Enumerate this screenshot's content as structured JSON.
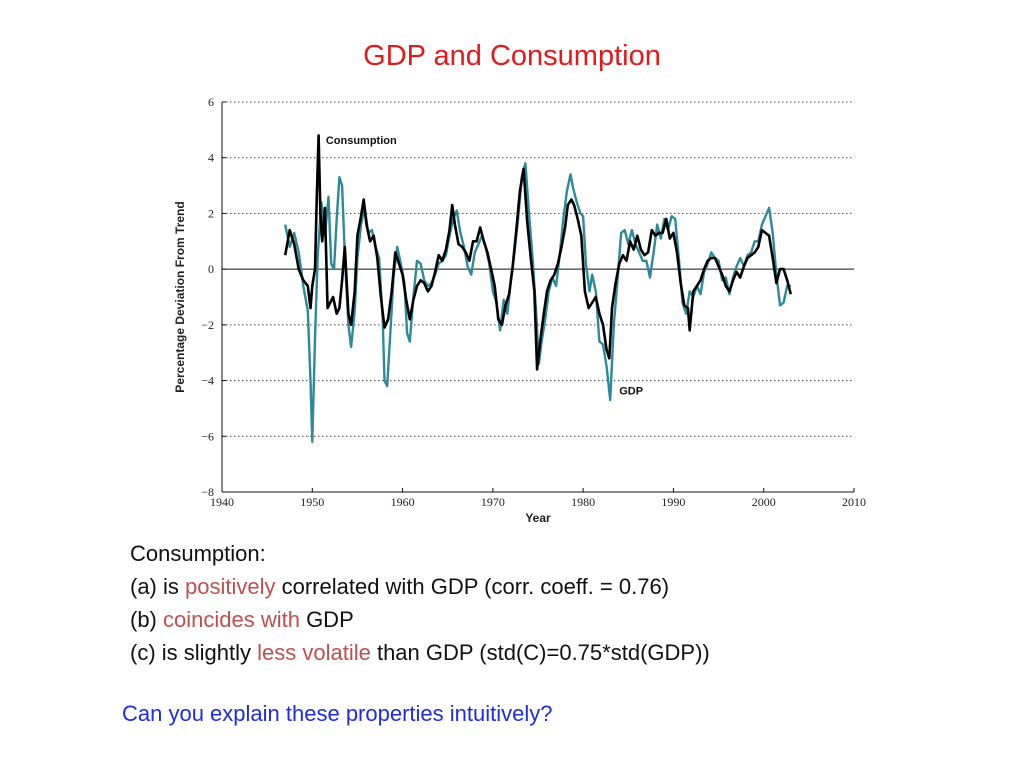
{
  "slide": {
    "title": "GDP and Consumption",
    "notes": {
      "heading": "Consumption:",
      "a_prefix": "(a) is ",
      "a_highlight": "positively",
      "a_suffix": " correlated with GDP (corr. coeff. = 0.76)",
      "b_prefix": "(b) ",
      "b_highlight": "coincides with",
      "b_suffix": " GDP",
      "c_prefix": "(c) is slightly ",
      "c_highlight": "less volatile",
      "c_suffix": " than GDP (std(C)=0.75*std(GDP))"
    },
    "question": "Can you explain these properties intuitively?",
    "colors": {
      "title": "#e31a1c",
      "highlight": "#c0504d",
      "question": "#1f2ce0",
      "gdp": "#2e8a9a",
      "consumption": "#000000"
    }
  },
  "chart_data": {
    "type": "line",
    "title": "",
    "xlabel": "Year",
    "ylabel": "Percentage Deviation From Trend",
    "xlim": [
      1940,
      2010
    ],
    "ylim": [
      -8,
      6
    ],
    "xticks": [
      1940,
      1950,
      1960,
      1970,
      1980,
      1990,
      2000,
      2010
    ],
    "yticks": [
      6,
      4,
      2,
      0,
      -2,
      -4,
      -6,
      -8
    ],
    "ytick_labels": [
      "6",
      "4",
      "2",
      "0",
      "−2",
      "−4",
      "−6",
      "−8"
    ],
    "grid": "dotted horizontal",
    "series": [
      {
        "name": "GDP",
        "points": [
          [
            1947.0,
            1.6
          ],
          [
            1947.5,
            0.8
          ],
          [
            1948.0,
            1.3
          ],
          [
            1948.5,
            0.6
          ],
          [
            1949.0,
            -0.6
          ],
          [
            1949.5,
            -1.5
          ],
          [
            1949.8,
            -4.0
          ],
          [
            1950.0,
            -6.2
          ],
          [
            1950.3,
            -2.5
          ],
          [
            1950.6,
            0.5
          ],
          [
            1951.0,
            2.4
          ],
          [
            1951.4,
            1.2
          ],
          [
            1951.8,
            2.6
          ],
          [
            1952.1,
            0.2
          ],
          [
            1952.4,
            0.0
          ],
          [
            1952.7,
            1.8
          ],
          [
            1953.0,
            3.3
          ],
          [
            1953.3,
            3.0
          ],
          [
            1953.6,
            0.5
          ],
          [
            1954.0,
            -2.0
          ],
          [
            1954.3,
            -2.8
          ],
          [
            1954.7,
            -1.5
          ],
          [
            1955.0,
            0.4
          ],
          [
            1955.4,
            1.6
          ],
          [
            1955.8,
            2.2
          ],
          [
            1956.2,
            1.3
          ],
          [
            1956.6,
            1.4
          ],
          [
            1957.0,
            0.8
          ],
          [
            1957.4,
            0.4
          ],
          [
            1957.8,
            -1.8
          ],
          [
            1958.0,
            -4.0
          ],
          [
            1958.3,
            -4.2
          ],
          [
            1958.7,
            -2.0
          ],
          [
            1959.0,
            -0.3
          ],
          [
            1959.4,
            0.8
          ],
          [
            1959.8,
            0.2
          ],
          [
            1960.2,
            -0.5
          ],
          [
            1960.5,
            -2.3
          ],
          [
            1960.8,
            -2.6
          ],
          [
            1961.2,
            -1.0
          ],
          [
            1961.6,
            0.3
          ],
          [
            1962.0,
            0.2
          ],
          [
            1962.4,
            -0.4
          ],
          [
            1962.8,
            -0.6
          ],
          [
            1963.2,
            -0.5
          ],
          [
            1963.6,
            -0.2
          ],
          [
            1964.0,
            0.2
          ],
          [
            1964.4,
            0.3
          ],
          [
            1964.8,
            0.5
          ],
          [
            1965.2,
            1.2
          ],
          [
            1965.6,
            1.8
          ],
          [
            1966.0,
            2.1
          ],
          [
            1966.4,
            1.3
          ],
          [
            1966.8,
            0.8
          ],
          [
            1967.2,
            0.1
          ],
          [
            1967.6,
            -0.2
          ],
          [
            1968.0,
            0.6
          ],
          [
            1968.4,
            0.9
          ],
          [
            1968.8,
            1.2
          ],
          [
            1969.2,
            0.8
          ],
          [
            1969.6,
            0.2
          ],
          [
            1970.0,
            -0.8
          ],
          [
            1970.4,
            -1.2
          ],
          [
            1970.8,
            -2.2
          ],
          [
            1971.2,
            -1.1
          ],
          [
            1971.6,
            -1.6
          ],
          [
            1972.0,
            -0.4
          ],
          [
            1972.4,
            0.6
          ],
          [
            1972.8,
            1.8
          ],
          [
            1973.2,
            3.3
          ],
          [
            1973.6,
            3.8
          ],
          [
            1974.0,
            2.0
          ],
          [
            1974.4,
            0.4
          ],
          [
            1974.8,
            -1.6
          ],
          [
            1975.1,
            -3.4
          ],
          [
            1975.4,
            -2.6
          ],
          [
            1975.8,
            -1.8
          ],
          [
            1976.2,
            -0.8
          ],
          [
            1976.6,
            -0.3
          ],
          [
            1977.0,
            -0.6
          ],
          [
            1977.4,
            0.5
          ],
          [
            1977.8,
            1.8
          ],
          [
            1978.2,
            2.8
          ],
          [
            1978.6,
            3.4
          ],
          [
            1978.9,
            2.9
          ],
          [
            1979.3,
            2.4
          ],
          [
            1979.7,
            2.0
          ],
          [
            1980.0,
            1.9
          ],
          [
            1980.3,
            0.2
          ],
          [
            1980.7,
            -0.8
          ],
          [
            1981.0,
            -0.2
          ],
          [
            1981.4,
            -0.8
          ],
          [
            1981.8,
            -2.6
          ],
          [
            1982.2,
            -2.7
          ],
          [
            1982.6,
            -3.5
          ],
          [
            1983.0,
            -4.7
          ],
          [
            1983.4,
            -2.0
          ],
          [
            1983.8,
            -0.4
          ],
          [
            1984.2,
            1.3
          ],
          [
            1984.6,
            1.4
          ],
          [
            1985.0,
            0.9
          ],
          [
            1985.4,
            1.4
          ],
          [
            1985.8,
            0.9
          ],
          [
            1986.2,
            0.6
          ],
          [
            1986.6,
            0.3
          ],
          [
            1987.0,
            0.3
          ],
          [
            1987.4,
            -0.3
          ],
          [
            1987.8,
            0.6
          ],
          [
            1988.2,
            1.6
          ],
          [
            1988.6,
            1.1
          ],
          [
            1989.0,
            1.8
          ],
          [
            1989.4,
            1.4
          ],
          [
            1989.8,
            1.9
          ],
          [
            1990.2,
            1.8
          ],
          [
            1990.6,
            0.4
          ],
          [
            1991.0,
            -1.2
          ],
          [
            1991.4,
            -1.6
          ],
          [
            1991.8,
            -0.8
          ],
          [
            1992.2,
            -1.0
          ],
          [
            1992.6,
            -0.6
          ],
          [
            1993.0,
            -0.9
          ],
          [
            1993.4,
            -0.1
          ],
          [
            1993.8,
            0.2
          ],
          [
            1994.2,
            0.6
          ],
          [
            1994.6,
            0.4
          ],
          [
            1995.0,
            0.3
          ],
          [
            1995.4,
            -0.4
          ],
          [
            1995.8,
            -0.3
          ],
          [
            1996.2,
            -0.9
          ],
          [
            1996.6,
            -0.3
          ],
          [
            1997.0,
            0.1
          ],
          [
            1997.4,
            0.4
          ],
          [
            1997.8,
            0.1
          ],
          [
            1998.2,
            0.5
          ],
          [
            1998.6,
            0.6
          ],
          [
            1999.0,
            1.0
          ],
          [
            1999.4,
            1.0
          ],
          [
            1999.8,
            1.6
          ],
          [
            2000.2,
            1.9
          ],
          [
            2000.6,
            2.2
          ],
          [
            2001.0,
            1.3
          ],
          [
            2001.4,
            -0.2
          ],
          [
            2001.8,
            -1.3
          ],
          [
            2002.2,
            -1.2
          ],
          [
            2002.6,
            -0.6
          ],
          [
            2003.0,
            -0.6
          ]
        ]
      },
      {
        "name": "Consumption",
        "points": [
          [
            1947.0,
            0.5
          ],
          [
            1947.5,
            1.4
          ],
          [
            1948.0,
            0.9
          ],
          [
            1948.5,
            0.0
          ],
          [
            1949.0,
            -0.4
          ],
          [
            1949.5,
            -0.6
          ],
          [
            1949.8,
            -1.4
          ],
          [
            1950.0,
            -0.6
          ],
          [
            1950.3,
            0.0
          ],
          [
            1950.5,
            2.6
          ],
          [
            1950.7,
            4.8
          ],
          [
            1950.9,
            2.0
          ],
          [
            1951.1,
            1.0
          ],
          [
            1951.4,
            2.2
          ],
          [
            1951.7,
            -1.4
          ],
          [
            1952.0,
            -1.2
          ],
          [
            1952.3,
            -1.0
          ],
          [
            1952.7,
            -1.6
          ],
          [
            1953.0,
            -1.4
          ],
          [
            1953.3,
            -0.4
          ],
          [
            1953.6,
            0.8
          ],
          [
            1954.0,
            -1.6
          ],
          [
            1954.3,
            -2.0
          ],
          [
            1954.7,
            -0.8
          ],
          [
            1955.0,
            1.2
          ],
          [
            1955.4,
            1.9
          ],
          [
            1955.7,
            2.5
          ],
          [
            1956.0,
            1.6
          ],
          [
            1956.4,
            1.0
          ],
          [
            1956.8,
            1.2
          ],
          [
            1957.2,
            0.4
          ],
          [
            1957.6,
            -1.0
          ],
          [
            1958.0,
            -2.1
          ],
          [
            1958.4,
            -1.8
          ],
          [
            1958.8,
            -0.8
          ],
          [
            1959.2,
            0.6
          ],
          [
            1959.6,
            0.2
          ],
          [
            1960.0,
            -0.2
          ],
          [
            1960.4,
            -1.1
          ],
          [
            1960.8,
            -1.8
          ],
          [
            1961.2,
            -1.1
          ],
          [
            1961.6,
            -0.6
          ],
          [
            1962.0,
            -0.4
          ],
          [
            1962.4,
            -0.5
          ],
          [
            1962.8,
            -0.8
          ],
          [
            1963.2,
            -0.6
          ],
          [
            1963.6,
            -0.1
          ],
          [
            1964.0,
            0.5
          ],
          [
            1964.4,
            0.3
          ],
          [
            1964.8,
            0.7
          ],
          [
            1965.2,
            1.4
          ],
          [
            1965.5,
            2.3
          ],
          [
            1965.8,
            1.6
          ],
          [
            1966.2,
            0.9
          ],
          [
            1966.6,
            0.8
          ],
          [
            1967.0,
            0.6
          ],
          [
            1967.4,
            0.3
          ],
          [
            1967.8,
            1.0
          ],
          [
            1968.2,
            1.0
          ],
          [
            1968.6,
            1.5
          ],
          [
            1969.0,
            1.0
          ],
          [
            1969.4,
            0.6
          ],
          [
            1969.8,
            0.0
          ],
          [
            1970.2,
            -0.6
          ],
          [
            1970.6,
            -1.8
          ],
          [
            1971.0,
            -2.0
          ],
          [
            1971.4,
            -1.3
          ],
          [
            1971.8,
            -0.9
          ],
          [
            1972.2,
            0.1
          ],
          [
            1972.6,
            1.4
          ],
          [
            1973.0,
            2.8
          ],
          [
            1973.4,
            3.6
          ],
          [
            1973.8,
            1.7
          ],
          [
            1974.2,
            0.4
          ],
          [
            1974.6,
            -0.8
          ],
          [
            1974.9,
            -3.6
          ],
          [
            1975.2,
            -2.7
          ],
          [
            1975.6,
            -1.7
          ],
          [
            1976.0,
            -0.8
          ],
          [
            1976.4,
            -0.4
          ],
          [
            1976.8,
            -0.2
          ],
          [
            1977.2,
            0.2
          ],
          [
            1977.6,
            0.8
          ],
          [
            1978.0,
            1.5
          ],
          [
            1978.3,
            2.3
          ],
          [
            1978.7,
            2.5
          ],
          [
            1979.0,
            2.3
          ],
          [
            1979.4,
            1.8
          ],
          [
            1979.8,
            1.2
          ],
          [
            1980.2,
            -0.8
          ],
          [
            1980.6,
            -1.4
          ],
          [
            1981.0,
            -1.2
          ],
          [
            1981.4,
            -1.0
          ],
          [
            1981.8,
            -1.6
          ],
          [
            1982.2,
            -2.0
          ],
          [
            1982.6,
            -2.9
          ],
          [
            1982.9,
            -3.2
          ],
          [
            1983.2,
            -1.4
          ],
          [
            1983.6,
            -0.5
          ],
          [
            1984.0,
            0.2
          ],
          [
            1984.4,
            0.5
          ],
          [
            1984.8,
            0.3
          ],
          [
            1985.2,
            1.0
          ],
          [
            1985.6,
            0.7
          ],
          [
            1986.0,
            1.2
          ],
          [
            1986.4,
            0.7
          ],
          [
            1986.8,
            0.5
          ],
          [
            1987.2,
            0.6
          ],
          [
            1987.6,
            1.4
          ],
          [
            1988.0,
            1.2
          ],
          [
            1988.4,
            1.3
          ],
          [
            1988.8,
            1.3
          ],
          [
            1989.2,
            1.8
          ],
          [
            1989.6,
            1.1
          ],
          [
            1990.0,
            1.3
          ],
          [
            1990.4,
            0.6
          ],
          [
            1990.8,
            -0.5
          ],
          [
            1991.2,
            -1.3
          ],
          [
            1991.6,
            -1.4
          ],
          [
            1991.8,
            -2.2
          ],
          [
            1992.2,
            -0.8
          ],
          [
            1992.6,
            -0.6
          ],
          [
            1993.0,
            -0.4
          ],
          [
            1993.4,
            0.0
          ],
          [
            1993.8,
            0.3
          ],
          [
            1994.2,
            0.4
          ],
          [
            1994.6,
            0.4
          ],
          [
            1995.0,
            0.1
          ],
          [
            1995.4,
            -0.2
          ],
          [
            1995.8,
            -0.6
          ],
          [
            1996.2,
            -0.8
          ],
          [
            1996.6,
            -0.4
          ],
          [
            1997.0,
            -0.1
          ],
          [
            1997.4,
            -0.3
          ],
          [
            1997.8,
            0.1
          ],
          [
            1998.2,
            0.4
          ],
          [
            1998.6,
            0.5
          ],
          [
            1999.0,
            0.6
          ],
          [
            1999.4,
            0.8
          ],
          [
            1999.8,
            1.4
          ],
          [
            2000.2,
            1.3
          ],
          [
            2000.6,
            1.2
          ],
          [
            2001.0,
            0.4
          ],
          [
            2001.4,
            -0.5
          ],
          [
            2001.8,
            0.0
          ],
          [
            2002.2,
            0.0
          ],
          [
            2002.6,
            -0.4
          ],
          [
            2003.0,
            -0.9
          ]
        ]
      }
    ],
    "annotations": [
      {
        "text": "Consumption",
        "series": "Consumption",
        "at": [
          1951.5,
          4.5
        ]
      },
      {
        "text": "GDP",
        "series": "GDP",
        "at": [
          1984.0,
          -4.5
        ]
      }
    ]
  }
}
